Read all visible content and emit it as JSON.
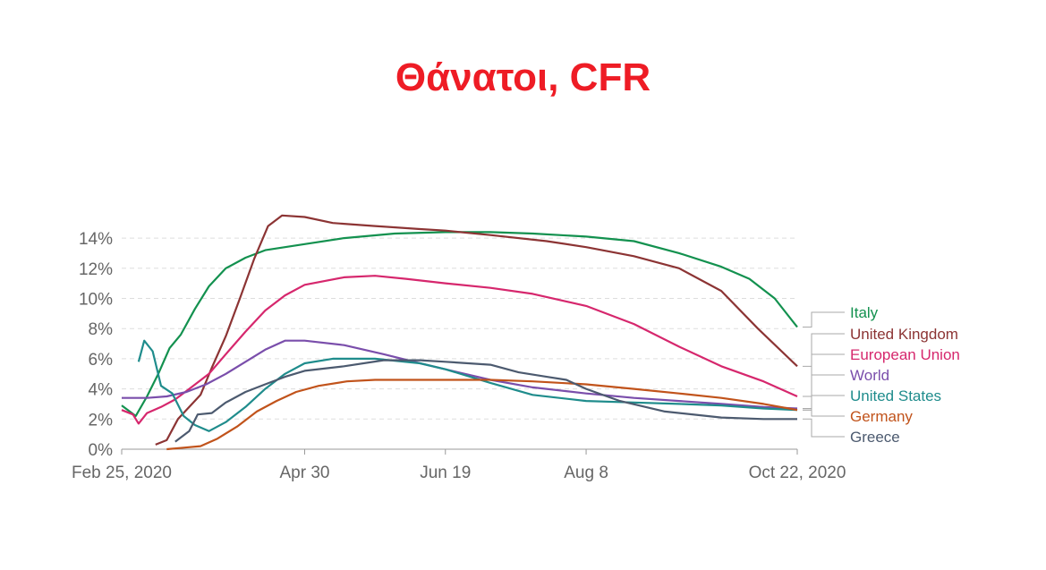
{
  "title": "Θάνατοι, CFR",
  "chart_data": {
    "type": "line",
    "title": "Θάνατοι, CFR",
    "xlabel": "",
    "ylabel": "",
    "x_start": "2020-02-25",
    "x_end": "2020-10-22",
    "x_ticks": [
      {
        "date": "2020-02-25",
        "label": "Feb 25, 2020"
      },
      {
        "date": "2020-04-30",
        "label": "Apr 30"
      },
      {
        "date": "2020-06-19",
        "label": "Jun 19"
      },
      {
        "date": "2020-08-08",
        "label": "Aug 8"
      },
      {
        "date": "2020-10-22",
        "label": "Oct 22, 2020"
      }
    ],
    "y_ticks": [
      {
        "value": 0,
        "label": "0%"
      },
      {
        "value": 2,
        "label": "2%"
      },
      {
        "value": 4,
        "label": "4%"
      },
      {
        "value": 6,
        "label": "6%"
      },
      {
        "value": 8,
        "label": "8%"
      },
      {
        "value": 10,
        "label": "10%"
      },
      {
        "value": 12,
        "label": "12%"
      },
      {
        "value": 14,
        "label": "14%"
      }
    ],
    "ylim": [
      0,
      14.5
    ],
    "grid": "horizontal dashed",
    "legend": "right, labels at line ends",
    "series": [
      {
        "name": "Italy",
        "color": "#13914f",
        "points": [
          [
            "2020-02-25",
            2.9
          ],
          [
            "2020-03-01",
            2.2
          ],
          [
            "2020-03-05",
            3.5
          ],
          [
            "2020-03-09",
            5.0
          ],
          [
            "2020-03-13",
            6.7
          ],
          [
            "2020-03-17",
            7.6
          ],
          [
            "2020-03-22",
            9.3
          ],
          [
            "2020-03-27",
            10.8
          ],
          [
            "2020-04-02",
            12.0
          ],
          [
            "2020-04-09",
            12.7
          ],
          [
            "2020-04-16",
            13.2
          ],
          [
            "2020-04-30",
            13.6
          ],
          [
            "2020-05-14",
            14.0
          ],
          [
            "2020-06-01",
            14.3
          ],
          [
            "2020-06-19",
            14.4
          ],
          [
            "2020-07-05",
            14.4
          ],
          [
            "2020-07-20",
            14.3
          ],
          [
            "2020-08-08",
            14.1
          ],
          [
            "2020-08-25",
            13.8
          ],
          [
            "2020-09-10",
            13.0
          ],
          [
            "2020-09-25",
            12.1
          ],
          [
            "2020-10-05",
            11.3
          ],
          [
            "2020-10-14",
            10.0
          ],
          [
            "2020-10-22",
            8.1
          ]
        ]
      },
      {
        "name": "United Kingdom",
        "color": "#8c3434",
        "points": [
          [
            "2020-03-08",
            0.3
          ],
          [
            "2020-03-12",
            0.6
          ],
          [
            "2020-03-16",
            2.0
          ],
          [
            "2020-03-20",
            2.8
          ],
          [
            "2020-03-24",
            3.6
          ],
          [
            "2020-03-28",
            5.4
          ],
          [
            "2020-04-02",
            7.5
          ],
          [
            "2020-04-07",
            10.0
          ],
          [
            "2020-04-12",
            12.6
          ],
          [
            "2020-04-17",
            14.8
          ],
          [
            "2020-04-22",
            15.5
          ],
          [
            "2020-04-30",
            15.4
          ],
          [
            "2020-05-10",
            15.0
          ],
          [
            "2020-05-25",
            14.8
          ],
          [
            "2020-06-10",
            14.6
          ],
          [
            "2020-06-19",
            14.5
          ],
          [
            "2020-07-05",
            14.2
          ],
          [
            "2020-07-25",
            13.8
          ],
          [
            "2020-08-08",
            13.4
          ],
          [
            "2020-08-25",
            12.8
          ],
          [
            "2020-09-10",
            12.0
          ],
          [
            "2020-09-25",
            10.5
          ],
          [
            "2020-10-08",
            8.0
          ],
          [
            "2020-10-22",
            5.5
          ]
        ]
      },
      {
        "name": "European Union",
        "color": "#d6276d",
        "points": [
          [
            "2020-02-25",
            2.6
          ],
          [
            "2020-02-29",
            2.3
          ],
          [
            "2020-03-02",
            1.7
          ],
          [
            "2020-03-05",
            2.4
          ],
          [
            "2020-03-10",
            2.8
          ],
          [
            "2020-03-15",
            3.3
          ],
          [
            "2020-03-20",
            4.0
          ],
          [
            "2020-03-27",
            5.0
          ],
          [
            "2020-04-02",
            6.3
          ],
          [
            "2020-04-09",
            7.8
          ],
          [
            "2020-04-16",
            9.2
          ],
          [
            "2020-04-23",
            10.2
          ],
          [
            "2020-04-30",
            10.9
          ],
          [
            "2020-05-14",
            11.4
          ],
          [
            "2020-05-25",
            11.5
          ],
          [
            "2020-06-05",
            11.3
          ],
          [
            "2020-06-19",
            11.0
          ],
          [
            "2020-07-05",
            10.7
          ],
          [
            "2020-07-20",
            10.3
          ],
          [
            "2020-08-08",
            9.5
          ],
          [
            "2020-08-25",
            8.3
          ],
          [
            "2020-09-10",
            6.8
          ],
          [
            "2020-09-25",
            5.5
          ],
          [
            "2020-10-10",
            4.5
          ],
          [
            "2020-10-22",
            3.5
          ]
        ]
      },
      {
        "name": "World",
        "color": "#7a4eab",
        "points": [
          [
            "2020-02-25",
            3.4
          ],
          [
            "2020-03-05",
            3.4
          ],
          [
            "2020-03-12",
            3.5
          ],
          [
            "2020-03-19",
            3.8
          ],
          [
            "2020-03-26",
            4.3
          ],
          [
            "2020-04-02",
            5.0
          ],
          [
            "2020-04-09",
            5.8
          ],
          [
            "2020-04-16",
            6.6
          ],
          [
            "2020-04-23",
            7.2
          ],
          [
            "2020-04-30",
            7.2
          ],
          [
            "2020-05-14",
            6.9
          ],
          [
            "2020-05-28",
            6.3
          ],
          [
            "2020-06-10",
            5.7
          ],
          [
            "2020-06-19",
            5.3
          ],
          [
            "2020-07-05",
            4.6
          ],
          [
            "2020-07-20",
            4.1
          ],
          [
            "2020-08-08",
            3.7
          ],
          [
            "2020-08-25",
            3.4
          ],
          [
            "2020-09-10",
            3.2
          ],
          [
            "2020-09-25",
            3.0
          ],
          [
            "2020-10-10",
            2.8
          ],
          [
            "2020-10-22",
            2.7
          ]
        ]
      },
      {
        "name": "United States",
        "color": "#1f8c8c",
        "points": [
          [
            "2020-03-02",
            5.8
          ],
          [
            "2020-03-04",
            7.2
          ],
          [
            "2020-03-07",
            6.5
          ],
          [
            "2020-03-10",
            4.2
          ],
          [
            "2020-03-14",
            3.7
          ],
          [
            "2020-03-18",
            2.2
          ],
          [
            "2020-03-22",
            1.6
          ],
          [
            "2020-03-27",
            1.2
          ],
          [
            "2020-04-02",
            1.8
          ],
          [
            "2020-04-09",
            2.8
          ],
          [
            "2020-04-16",
            4.0
          ],
          [
            "2020-04-23",
            5.0
          ],
          [
            "2020-04-30",
            5.7
          ],
          [
            "2020-05-10",
            6.0
          ],
          [
            "2020-05-25",
            6.0
          ],
          [
            "2020-06-10",
            5.7
          ],
          [
            "2020-06-19",
            5.3
          ],
          [
            "2020-07-05",
            4.4
          ],
          [
            "2020-07-20",
            3.6
          ],
          [
            "2020-08-08",
            3.2
          ],
          [
            "2020-08-25",
            3.1
          ],
          [
            "2020-09-10",
            3.0
          ],
          [
            "2020-09-25",
            2.9
          ],
          [
            "2020-10-10",
            2.7
          ],
          [
            "2020-10-22",
            2.6
          ]
        ]
      },
      {
        "name": "Germany",
        "color": "#c1531b",
        "points": [
          [
            "2020-03-12",
            0.0
          ],
          [
            "2020-03-18",
            0.1
          ],
          [
            "2020-03-24",
            0.2
          ],
          [
            "2020-03-30",
            0.7
          ],
          [
            "2020-04-06",
            1.5
          ],
          [
            "2020-04-13",
            2.5
          ],
          [
            "2020-04-20",
            3.2
          ],
          [
            "2020-04-27",
            3.8
          ],
          [
            "2020-05-05",
            4.2
          ],
          [
            "2020-05-15",
            4.5
          ],
          [
            "2020-05-25",
            4.6
          ],
          [
            "2020-06-19",
            4.6
          ],
          [
            "2020-07-05",
            4.6
          ],
          [
            "2020-07-20",
            4.5
          ],
          [
            "2020-08-08",
            4.3
          ],
          [
            "2020-08-25",
            4.0
          ],
          [
            "2020-09-10",
            3.7
          ],
          [
            "2020-09-25",
            3.4
          ],
          [
            "2020-10-10",
            3.0
          ],
          [
            "2020-10-22",
            2.6
          ]
        ]
      },
      {
        "name": "Greece",
        "color": "#4c5a6f",
        "points": [
          [
            "2020-03-15",
            0.5
          ],
          [
            "2020-03-20",
            1.2
          ],
          [
            "2020-03-23",
            2.3
          ],
          [
            "2020-03-28",
            2.4
          ],
          [
            "2020-04-02",
            3.1
          ],
          [
            "2020-04-09",
            3.8
          ],
          [
            "2020-04-16",
            4.3
          ],
          [
            "2020-04-23",
            4.8
          ],
          [
            "2020-04-30",
            5.2
          ],
          [
            "2020-05-14",
            5.5
          ],
          [
            "2020-05-28",
            5.9
          ],
          [
            "2020-06-10",
            5.9
          ],
          [
            "2020-06-19",
            5.8
          ],
          [
            "2020-07-05",
            5.6
          ],
          [
            "2020-07-15",
            5.1
          ],
          [
            "2020-07-25",
            4.8
          ],
          [
            "2020-08-01",
            4.6
          ],
          [
            "2020-08-08",
            4.0
          ],
          [
            "2020-08-20",
            3.2
          ],
          [
            "2020-09-05",
            2.5
          ],
          [
            "2020-09-25",
            2.1
          ],
          [
            "2020-10-10",
            2.0
          ],
          [
            "2020-10-22",
            2.0
          ]
        ]
      }
    ]
  }
}
